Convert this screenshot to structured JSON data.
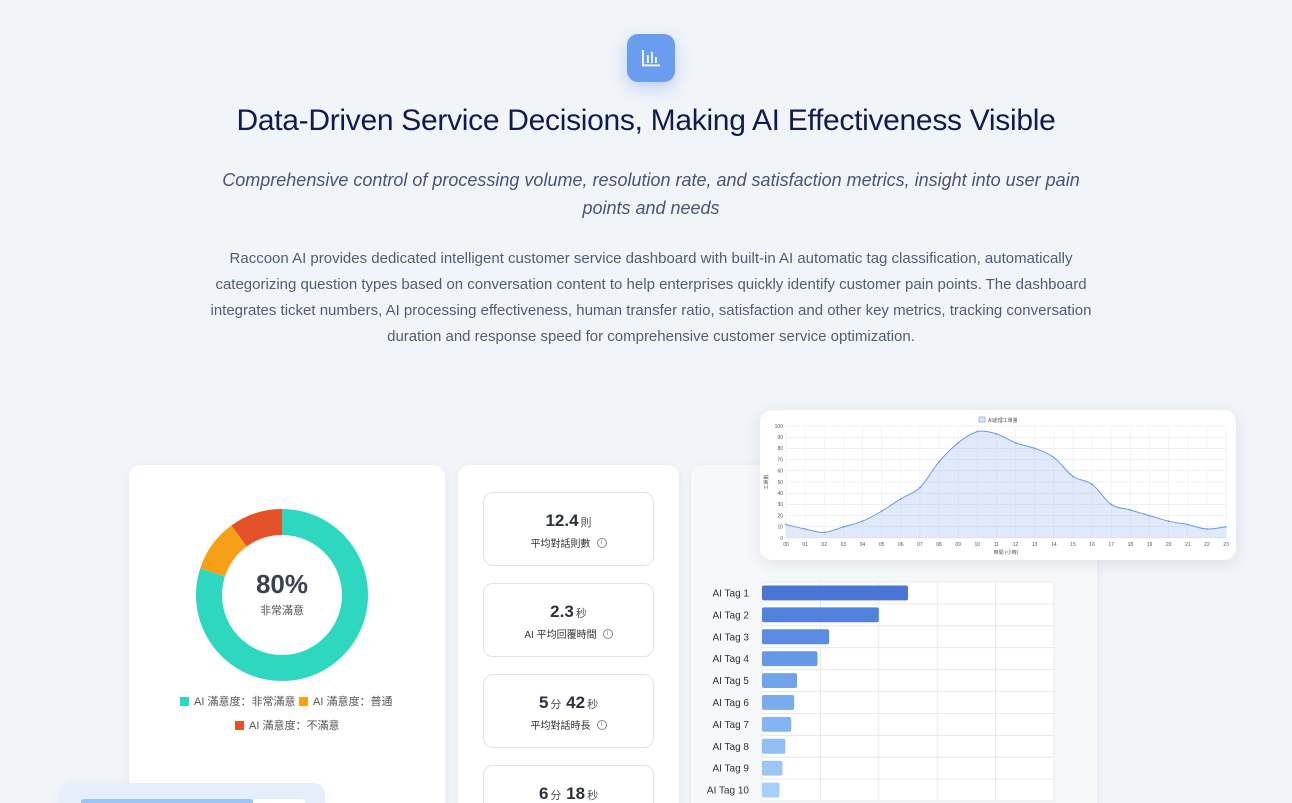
{
  "hero": {
    "icon": "bar-chart-icon",
    "title": "Data-Driven Service Decisions, Making AI Effectiveness Visible",
    "subtitle": "Comprehensive control of processing volume, resolution rate, and satisfaction metrics, insight into user pain points and needs",
    "description": "Raccoon AI provides dedicated intelligent customer service dashboard with built-in AI automatic tag classification, automatically categorizing question types based on conversation content to help enterprises quickly identify customer pain points. The dashboard integrates ticket numbers, AI processing effectiveness, human transfer ratio, satisfaction and other key metrics, tracking conversation duration and response speed for comprehensive customer service optimization."
  },
  "colors": {
    "accent": "#6a9cf0",
    "satisfied": "#2ed8c0",
    "neutral": "#f5a016",
    "unsatisfied": "#e5522a"
  },
  "satisfaction": {
    "center_value": "80%",
    "center_label": "非常滿意",
    "legend": [
      {
        "label": "AI 滿意度：非常滿意",
        "color": "#2ed8c0"
      },
      {
        "label": "AI 滿意度：普通",
        "color": "#f5a016"
      },
      {
        "label": "AI 滿意度：不滿意",
        "color": "#e5522a"
      }
    ]
  },
  "stats": [
    {
      "value": "12.4",
      "unit": "則",
      "label": "平均對話則數"
    },
    {
      "value": "2.3",
      "unit": "秒",
      "label": "AI 平均回覆時間"
    },
    {
      "value_parts": [
        "5",
        "分",
        "42",
        "秒"
      ],
      "label": "平均對話時長"
    },
    {
      "value_parts": [
        "6",
        "分",
        "18",
        "秒"
      ],
      "label": ""
    }
  ],
  "chart_data": [
    {
      "type": "pie",
      "categories": [
        "AI 滿意度：非常滿意",
        "AI 滿意度：普通",
        "AI 滿意度：不滿意"
      ],
      "values": [
        80,
        10,
        10
      ]
    },
    {
      "type": "area",
      "legend": "AI處理工單量",
      "x": [
        "00",
        "01",
        "02",
        "03",
        "04",
        "05",
        "06",
        "07",
        "08",
        "09",
        "10",
        "11",
        "12",
        "13",
        "14",
        "15",
        "16",
        "17",
        "18",
        "19",
        "20",
        "21",
        "22",
        "23"
      ],
      "values": [
        12,
        8,
        5,
        10,
        15,
        24,
        35,
        45,
        68,
        85,
        95,
        93,
        85,
        80,
        72,
        55,
        48,
        30,
        25,
        20,
        15,
        12,
        8,
        10
      ],
      "ylim": [
        0,
        100
      ],
      "yticks": [
        0,
        10,
        20,
        30,
        40,
        50,
        60,
        70,
        80,
        90,
        100
      ],
      "xlabel": "時間 (小時)",
      "ylabel": "工單數",
      "grid": true
    },
    {
      "type": "bar",
      "orientation": "horizontal",
      "categories": [
        "AI Tag 1",
        "AI Tag 2",
        "AI Tag 3",
        "AI Tag 4",
        "AI Tag 5",
        "AI Tag 6",
        "AI Tag 7",
        "AI Tag 8",
        "AI Tag 9",
        "AI Tag 10"
      ],
      "values": [
        100,
        80,
        46,
        38,
        24,
        22,
        20,
        16,
        14,
        12
      ],
      "grid": true
    }
  ]
}
